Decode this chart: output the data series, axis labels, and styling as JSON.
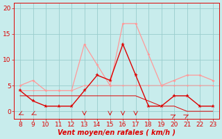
{
  "x_hours": [
    8,
    9,
    10,
    11,
    12,
    13,
    14,
    15,
    16,
    17,
    18,
    19,
    20,
    21,
    22,
    23
  ],
  "wind_avg": [
    4,
    2,
    1,
    1,
    1,
    4,
    7,
    6,
    13,
    7,
    1,
    1,
    3,
    3,
    1,
    1
  ],
  "wind_gust": [
    5,
    6,
    4,
    4,
    4,
    13,
    9,
    5,
    17,
    17,
    11,
    5,
    6,
    7,
    7,
    6
  ],
  "wind_dir_line": [
    4,
    4,
    4,
    4,
    4,
    5,
    5,
    5,
    5,
    5,
    5,
    5,
    5,
    5,
    5,
    5
  ],
  "wind_flat_line": [
    3,
    3,
    3,
    3,
    3,
    3,
    3,
    3,
    3,
    3,
    2,
    1,
    1,
    0,
    0,
    0
  ],
  "background_color": "#c8ecec",
  "grid_color": "#99cccc",
  "line_avg_color": "#dd0000",
  "line_gust_color": "#ff9999",
  "xlabel": "Vent moyen/en rafales ( km/h )",
  "ylim": [
    -1.5,
    21
  ],
  "yticks": [
    0,
    5,
    10,
    15,
    20
  ],
  "xlim": [
    7.5,
    23.5
  ],
  "xticks": [
    8,
    9,
    10,
    11,
    12,
    13,
    14,
    15,
    16,
    17,
    18,
    19,
    20,
    21,
    22,
    23
  ],
  "xlabel_fontsize": 7,
  "tick_fontsize": 6.5
}
